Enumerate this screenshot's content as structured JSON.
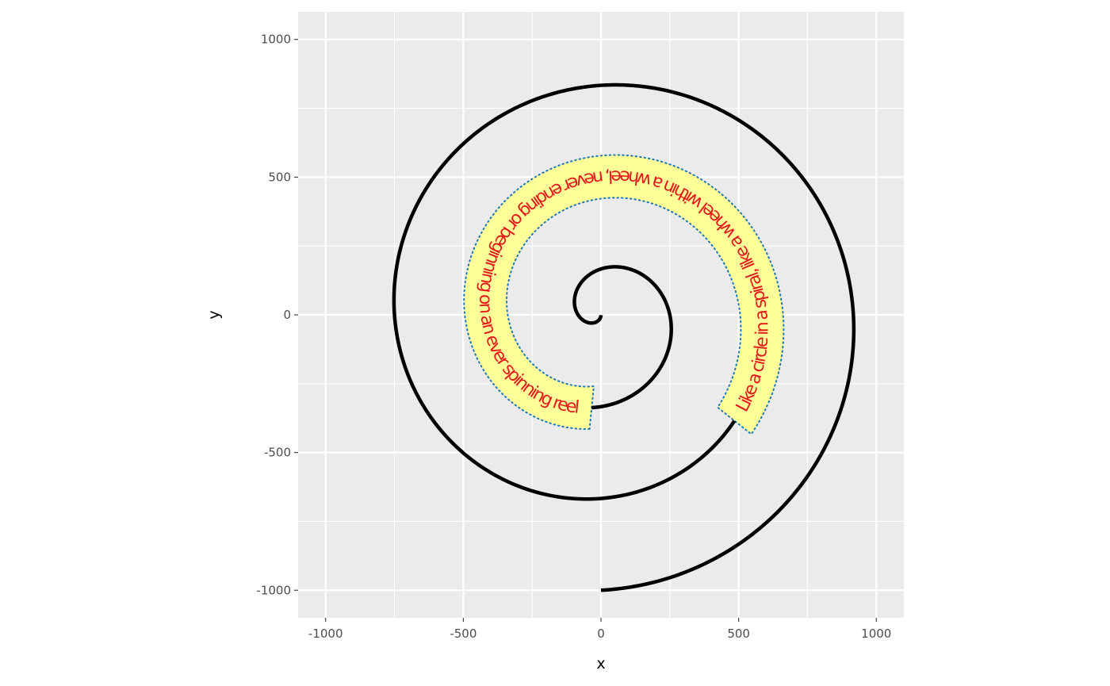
{
  "chart_data": {
    "type": "line",
    "xlabel": "x",
    "ylabel": "y",
    "xlim": [
      -1100,
      1100
    ],
    "ylim": [
      -1100,
      1100
    ],
    "x_ticks": [
      -1000,
      -500,
      0,
      500,
      1000
    ],
    "y_ticks": [
      -1000,
      -500,
      0,
      500,
      1000
    ],
    "x_tick_labels": [
      "-1000",
      "-500",
      "0",
      "500",
      "1000"
    ],
    "y_tick_labels": [
      "-1000",
      "-500",
      "0",
      "500",
      "1000"
    ],
    "grid": true,
    "panel_color": "#ebebeb",
    "grid_color": "#ffffff",
    "spiral": {
      "type": "archimedean",
      "start": [
        0,
        0
      ],
      "end": [
        0,
        -1000
      ],
      "line_color": "#000000"
    },
    "text_path": {
      "text": "Like a circle in a spiral, like a wheel within a wheel, never ending or beginning on an ever spinning reel",
      "text_color": "#e31a1c",
      "fill_color": "#ffff99",
      "border_color": "#1f78b4",
      "border_style": "dotted"
    }
  }
}
